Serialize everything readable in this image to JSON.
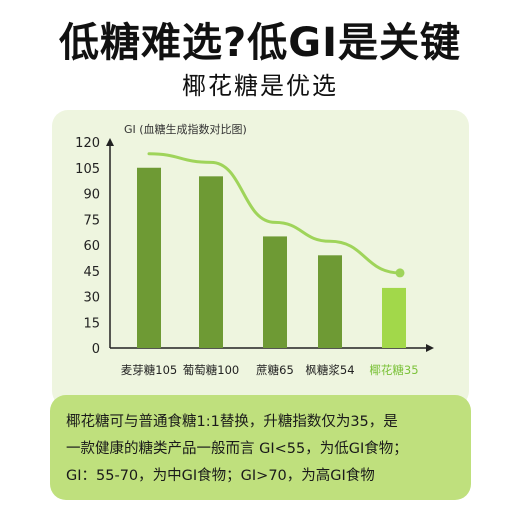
{
  "header": {
    "title": "低糖难选?低GI是关键",
    "subtitle": "椰花糖是优选"
  },
  "chart_data": {
    "type": "bar",
    "title": "GI (血糖生成指数对比图)",
    "categories": [
      "麦芽糖105",
      "葡萄糖100",
      "蔗糖65",
      "枫糖浆54",
      "椰花糖35"
    ],
    "values": [
      105,
      100,
      65,
      54,
      35
    ],
    "yticks": [
      0,
      15,
      30,
      45,
      60,
      75,
      90,
      105,
      120
    ],
    "ylim": [
      0,
      120
    ],
    "trend_line": true,
    "highlight_category": "椰花糖35",
    "colors": {
      "bar": "#6e9a34",
      "bar_highlight": "#a2d84a",
      "trend": "#9fd45a",
      "highlight_label": "#7cc23a"
    }
  },
  "note": {
    "lines": [
      "椰花糖可与普通食糖1:1替换，升糖指数仅为35，是",
      "一款健康的糖类产品一般而言 GI<55，为低GI食物；",
      "GI：55-70，为中GI食物；GI>70，为高GI食物"
    ]
  }
}
